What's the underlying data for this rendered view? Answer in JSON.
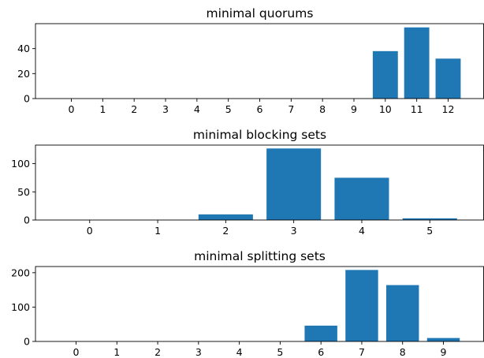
{
  "chart_data": [
    {
      "type": "bar",
      "title": "minimal quorums",
      "categories": [
        "0",
        "1",
        "2",
        "3",
        "4",
        "5",
        "6",
        "7",
        "8",
        "9",
        "10",
        "11",
        "12"
      ],
      "values": [
        0,
        0,
        0,
        0,
        0,
        0,
        0,
        0,
        0,
        0,
        38,
        57,
        32
      ],
      "yticks": [
        0,
        20,
        40
      ],
      "ylim": [
        0,
        60
      ],
      "xlabel": "",
      "ylabel": "",
      "bar_color": "#1f77b4",
      "grid": false,
      "legend": "none"
    },
    {
      "type": "bar",
      "title": "minimal blocking sets",
      "categories": [
        "0",
        "1",
        "2",
        "3",
        "4",
        "5"
      ],
      "values": [
        0,
        0,
        10,
        127,
        75,
        3
      ],
      "yticks": [
        0,
        50,
        100
      ],
      "ylim": [
        0,
        133
      ],
      "xlabel": "",
      "ylabel": "",
      "bar_color": "#1f77b4",
      "grid": false,
      "legend": "none"
    },
    {
      "type": "bar",
      "title": "minimal splitting sets",
      "categories": [
        "0",
        "1",
        "2",
        "3",
        "4",
        "5",
        "6",
        "7",
        "8",
        "9"
      ],
      "values": [
        0,
        0,
        0,
        0,
        0,
        0,
        46,
        208,
        164,
        10
      ],
      "yticks": [
        0,
        100,
        200
      ],
      "ylim": [
        0,
        218
      ],
      "xlabel": "",
      "ylabel": "",
      "bar_color": "#1f77b4",
      "grid": false,
      "legend": "none"
    }
  ]
}
